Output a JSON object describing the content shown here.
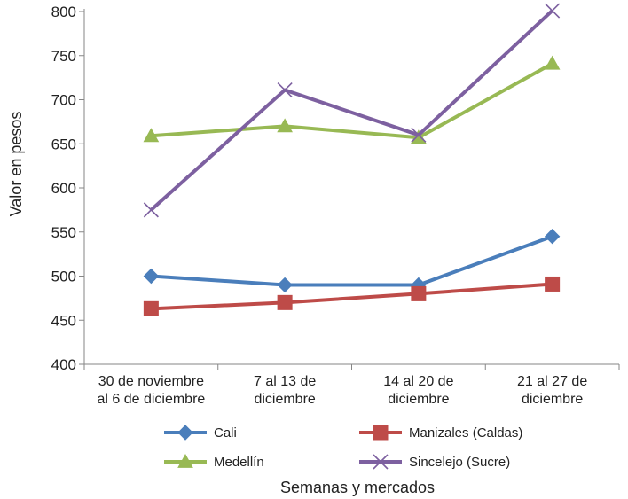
{
  "chart_data": {
    "type": "line",
    "categories": [
      [
        "30 de noviembre",
        "al 6 de diciembre"
      ],
      [
        "7 al 13 de",
        "diciembre"
      ],
      [
        "14 al 20 de",
        "diciembre"
      ],
      [
        "21 al 27 de",
        "diciembre"
      ]
    ],
    "xlabel": "Semanas y mercados",
    "ylabel": "Valor en pesos",
    "ylim": [
      400,
      800
    ],
    "yticks": [
      400,
      450,
      500,
      550,
      600,
      650,
      700,
      750,
      800
    ],
    "grid": false,
    "legend": "bottom",
    "series": [
      {
        "name": "Cali",
        "values": [
          500,
          490,
          490,
          545
        ],
        "color": "#4a7ebb",
        "marker": "diamond"
      },
      {
        "name": "Manizales (Caldas)",
        "values": [
          463,
          470,
          480,
          491
        ],
        "color": "#be4b48",
        "marker": "square"
      },
      {
        "name": "Medellín",
        "values": [
          659,
          670,
          657,
          741
        ],
        "color": "#98b954",
        "marker": "triangle"
      },
      {
        "name": "Sincelejo (Sucre)",
        "values": [
          575,
          711,
          660,
          801
        ],
        "color": "#7d60a0",
        "marker": "x"
      }
    ]
  }
}
